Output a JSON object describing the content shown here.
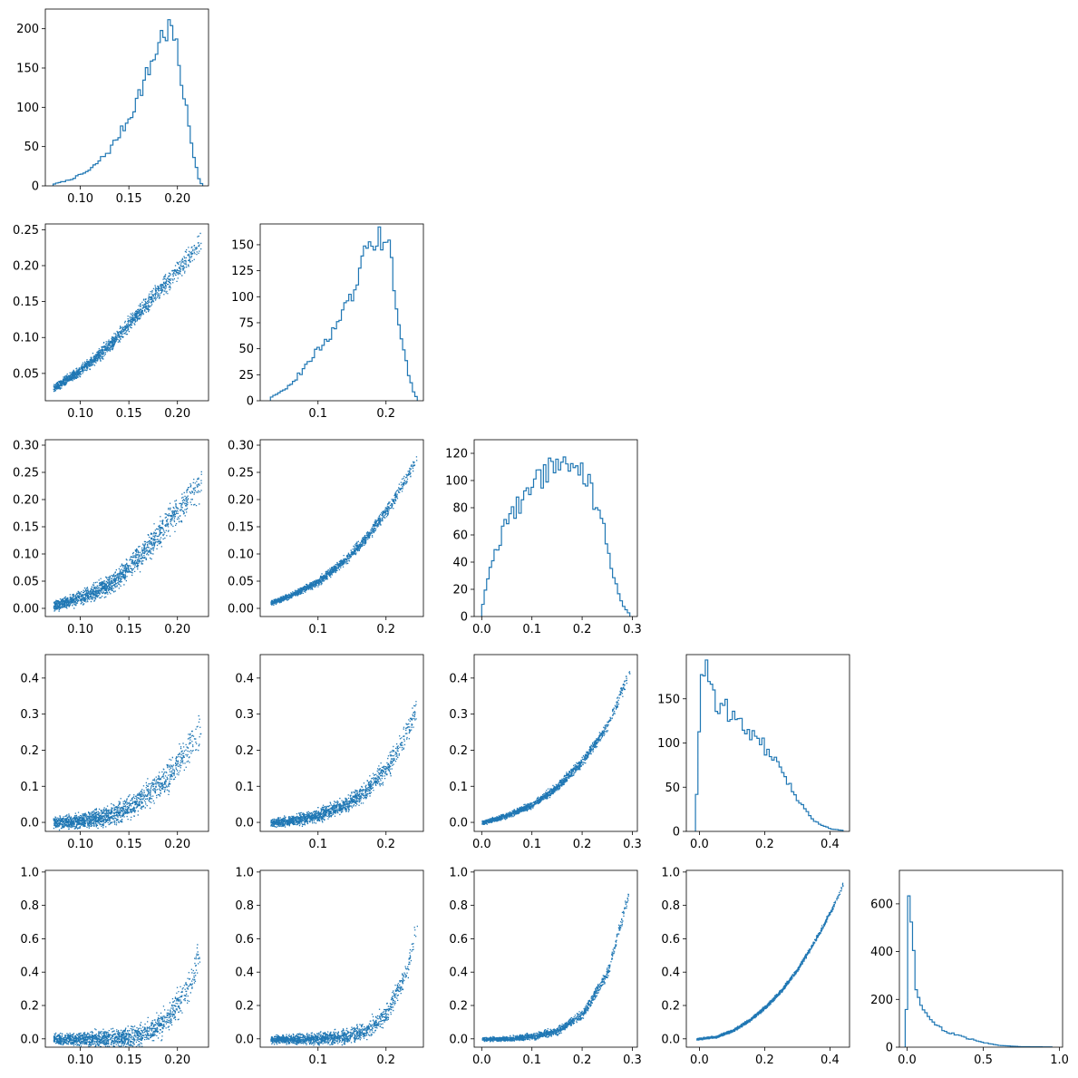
{
  "figure": {
    "rows": 5,
    "cols": 5,
    "color": "#1f77b4",
    "background": "#ffffff"
  },
  "chart_data": [
    {
      "type": "histogram",
      "row": 0,
      "col": 0,
      "xlim": [
        0.064,
        0.232
      ],
      "ylim": [
        0,
        225
      ],
      "xticks": [
        0.1,
        0.15,
        0.2
      ],
      "xticklabels": [
        "0.10",
        "0.15",
        "0.20"
      ],
      "yticks": [
        0,
        50,
        100,
        150,
        200
      ],
      "yticklabels": [
        "0",
        "50",
        "100",
        "150",
        "200"
      ],
      "profile_x": [
        0.072,
        0.09,
        0.11,
        0.13,
        0.15,
        0.17,
        0.185,
        0.195,
        0.205,
        0.215,
        0.222,
        0.226
      ],
      "profile_y": [
        2,
        8,
        20,
        45,
        85,
        145,
        195,
        200,
        130,
        50,
        10,
        0
      ],
      "bins": 60
    },
    {
      "type": "scatter",
      "row": 1,
      "col": 0,
      "xlim": [
        0.064,
        0.232
      ],
      "ylim": [
        0.012,
        0.258
      ],
      "xticks": [
        0.1,
        0.15,
        0.2
      ],
      "xticklabels": [
        "0.10",
        "0.15",
        "0.20"
      ],
      "yticks": [
        0.05,
        0.1,
        0.15,
        0.2,
        0.25
      ],
      "yticklabels": [
        "0.05",
        "0.10",
        "0.15",
        "0.20",
        "0.25"
      ],
      "curve_x": [
        0.072,
        0.1,
        0.13,
        0.15,
        0.17,
        0.19,
        0.21,
        0.225
      ],
      "curve_y": [
        0.03,
        0.055,
        0.09,
        0.12,
        0.15,
        0.18,
        0.21,
        0.235
      ],
      "spread": 0.012
    },
    {
      "type": "histogram",
      "row": 1,
      "col": 1,
      "xlim": [
        0.015,
        0.255
      ],
      "ylim": [
        0,
        170
      ],
      "xticks": [
        0.1,
        0.2
      ],
      "xticklabels": [
        "0.1",
        "0.2"
      ],
      "yticks": [
        0,
        25,
        50,
        75,
        100,
        125,
        150
      ],
      "yticklabels": [
        "0",
        "25",
        "50",
        "75",
        "100",
        "125",
        "150"
      ],
      "profile_x": [
        0.03,
        0.06,
        0.09,
        0.12,
        0.15,
        0.17,
        0.19,
        0.205,
        0.215,
        0.228,
        0.24,
        0.246
      ],
      "profile_y": [
        3,
        15,
        40,
        65,
        100,
        140,
        160,
        145,
        90,
        40,
        10,
        2
      ],
      "bins": 60
    },
    {
      "type": "scatter",
      "row": 2,
      "col": 0,
      "xlim": [
        0.064,
        0.232
      ],
      "ylim": [
        -0.015,
        0.31
      ],
      "xticks": [
        0.1,
        0.15,
        0.2
      ],
      "xticklabels": [
        "0.10",
        "0.15",
        "0.20"
      ],
      "yticks": [
        0.0,
        0.05,
        0.1,
        0.15,
        0.2,
        0.25,
        0.3
      ],
      "yticklabels": [
        "0.00",
        "0.05",
        "0.10",
        "0.15",
        "0.20",
        "0.25",
        "0.30"
      ],
      "curve_x": [
        0.072,
        0.1,
        0.13,
        0.15,
        0.17,
        0.19,
        0.21,
        0.225
      ],
      "curve_y": [
        0.005,
        0.02,
        0.045,
        0.075,
        0.115,
        0.16,
        0.2,
        0.235
      ],
      "spread": 0.022
    },
    {
      "type": "scatter",
      "row": 2,
      "col": 1,
      "xlim": [
        0.015,
        0.255
      ],
      "ylim": [
        -0.015,
        0.31
      ],
      "xticks": [
        0.1,
        0.2
      ],
      "xticklabels": [
        "0.1",
        "0.2"
      ],
      "yticks": [
        0.0,
        0.05,
        0.1,
        0.15,
        0.2,
        0.25,
        0.3
      ],
      "yticklabels": [
        "0.00",
        "0.05",
        "0.10",
        "0.15",
        "0.20",
        "0.25",
        "0.30"
      ],
      "curve_x": [
        0.03,
        0.06,
        0.1,
        0.14,
        0.17,
        0.2,
        0.23,
        0.246
      ],
      "curve_y": [
        0.01,
        0.025,
        0.05,
        0.09,
        0.13,
        0.18,
        0.24,
        0.28
      ],
      "spread": 0.01
    },
    {
      "type": "histogram",
      "row": 2,
      "col": 2,
      "xlim": [
        -0.015,
        0.31
      ],
      "ylim": [
        0,
        130
      ],
      "xticks": [
        0.0,
        0.1,
        0.2,
        0.3
      ],
      "xticklabels": [
        "0.0",
        "0.1",
        "0.2",
        "0.3"
      ],
      "yticks": [
        0,
        20,
        40,
        60,
        80,
        100,
        120
      ],
      "yticklabels": [
        "0",
        "20",
        "40",
        "60",
        "80",
        "100",
        "120"
      ],
      "profile_x": [
        0.0,
        0.02,
        0.05,
        0.1,
        0.15,
        0.18,
        0.21,
        0.24,
        0.26,
        0.28,
        0.295
      ],
      "profile_y": [
        5,
        40,
        70,
        95,
        115,
        115,
        100,
        70,
        35,
        8,
        2
      ],
      "bins": 60
    },
    {
      "type": "scatter",
      "row": 3,
      "col": 0,
      "xlim": [
        0.064,
        0.232
      ],
      "ylim": [
        -0.025,
        0.465
      ],
      "xticks": [
        0.1,
        0.15,
        0.2
      ],
      "xticklabels": [
        "0.10",
        "0.15",
        "0.20"
      ],
      "yticks": [
        0.0,
        0.1,
        0.2,
        0.3,
        0.4
      ],
      "yticklabels": [
        "0.0",
        "0.1",
        "0.2",
        "0.3",
        "0.4"
      ],
      "curve_x": [
        0.072,
        0.1,
        0.13,
        0.15,
        0.17,
        0.19,
        0.21,
        0.225
      ],
      "curve_y": [
        0.0,
        0.005,
        0.02,
        0.04,
        0.08,
        0.13,
        0.2,
        0.27
      ],
      "spread": 0.035
    },
    {
      "type": "scatter",
      "row": 3,
      "col": 1,
      "xlim": [
        0.015,
        0.255
      ],
      "ylim": [
        -0.025,
        0.465
      ],
      "xticks": [
        0.1,
        0.2
      ],
      "xticklabels": [
        "0.1",
        "0.2"
      ],
      "yticks": [
        0.0,
        0.1,
        0.2,
        0.3,
        0.4
      ],
      "yticklabels": [
        "0.0",
        "0.1",
        "0.2",
        "0.3",
        "0.4"
      ],
      "curve_x": [
        0.03,
        0.06,
        0.1,
        0.14,
        0.17,
        0.2,
        0.23,
        0.246
      ],
      "curve_y": [
        0.0,
        0.005,
        0.02,
        0.05,
        0.09,
        0.15,
        0.25,
        0.33
      ],
      "spread": 0.025
    },
    {
      "type": "scatter",
      "row": 3,
      "col": 2,
      "xlim": [
        -0.015,
        0.31
      ],
      "ylim": [
        -0.025,
        0.465
      ],
      "xticks": [
        0.0,
        0.1,
        0.2,
        0.3
      ],
      "xticklabels": [
        "0.0",
        "0.1",
        "0.2",
        "0.3"
      ],
      "yticks": [
        0.0,
        0.1,
        0.2,
        0.3,
        0.4
      ],
      "yticklabels": [
        "0.0",
        "0.1",
        "0.2",
        "0.3",
        "0.4"
      ],
      "curve_x": [
        0.0,
        0.05,
        0.1,
        0.15,
        0.2,
        0.25,
        0.295
      ],
      "curve_y": [
        0.0,
        0.02,
        0.05,
        0.1,
        0.17,
        0.27,
        0.42
      ],
      "spread": 0.012
    },
    {
      "type": "histogram",
      "row": 3,
      "col": 3,
      "xlim": [
        -0.04,
        0.46
      ],
      "ylim": [
        0,
        200
      ],
      "xticks": [
        0.0,
        0.2,
        0.4
      ],
      "xticklabels": [
        "0.0",
        "0.2",
        "0.4"
      ],
      "yticks": [
        0,
        50,
        100,
        150
      ],
      "yticklabels": [
        "0",
        "50",
        "100",
        "150"
      ],
      "profile_x": [
        -0.012,
        -0.005,
        0.005,
        0.015,
        0.05,
        0.1,
        0.15,
        0.2,
        0.25,
        0.3,
        0.35,
        0.4,
        0.44
      ],
      "profile_y": [
        0,
        80,
        170,
        185,
        150,
        130,
        115,
        95,
        70,
        35,
        12,
        3,
        1
      ],
      "bins": 60
    },
    {
      "type": "scatter",
      "row": 4,
      "col": 0,
      "xlim": [
        0.064,
        0.232
      ],
      "ylim": [
        -0.05,
        1.01
      ],
      "xticks": [
        0.1,
        0.15,
        0.2
      ],
      "xticklabels": [
        "0.10",
        "0.15",
        "0.20"
      ],
      "yticks": [
        0.0,
        0.2,
        0.4,
        0.6,
        0.8,
        1.0
      ],
      "yticklabels": [
        "0.0",
        "0.2",
        "0.4",
        "0.6",
        "0.8",
        "1.0"
      ],
      "curve_x": [
        0.072,
        0.1,
        0.13,
        0.15,
        0.17,
        0.19,
        0.21,
        0.225
      ],
      "curve_y": [
        0.0,
        0.0,
        0.005,
        0.01,
        0.04,
        0.12,
        0.3,
        0.55
      ],
      "spread": 0.07
    },
    {
      "type": "scatter",
      "row": 4,
      "col": 1,
      "xlim": [
        0.015,
        0.255
      ],
      "ylim": [
        -0.05,
        1.01
      ],
      "xticks": [
        0.1,
        0.2
      ],
      "xticklabels": [
        "0.1",
        "0.2"
      ],
      "yticks": [
        0.0,
        0.2,
        0.4,
        0.6,
        0.8,
        1.0
      ],
      "yticklabels": [
        "0.0",
        "0.2",
        "0.4",
        "0.6",
        "0.8",
        "1.0"
      ],
      "curve_x": [
        0.03,
        0.06,
        0.1,
        0.14,
        0.17,
        0.2,
        0.23,
        0.246
      ],
      "curve_y": [
        0.0,
        0.0,
        0.003,
        0.015,
        0.05,
        0.15,
        0.4,
        0.7
      ],
      "spread": 0.05
    },
    {
      "type": "scatter",
      "row": 4,
      "col": 2,
      "xlim": [
        -0.015,
        0.31
      ],
      "ylim": [
        -0.05,
        1.01
      ],
      "xticks": [
        0.0,
        0.1,
        0.2,
        0.3
      ],
      "xticklabels": [
        "0.0",
        "0.1",
        "0.2",
        "0.3"
      ],
      "yticks": [
        0.0,
        0.2,
        0.4,
        0.6,
        0.8,
        1.0
      ],
      "yticklabels": [
        "0.0",
        "0.2",
        "0.4",
        "0.6",
        "0.8",
        "1.0"
      ],
      "curve_x": [
        0.0,
        0.05,
        0.1,
        0.15,
        0.2,
        0.25,
        0.295
      ],
      "curve_y": [
        0.0,
        0.003,
        0.015,
        0.05,
        0.15,
        0.4,
        0.9
      ],
      "spread": 0.025
    },
    {
      "type": "scatter",
      "row": 4,
      "col": 3,
      "xlim": [
        -0.04,
        0.46
      ],
      "ylim": [
        -0.05,
        1.01
      ],
      "xticks": [
        0.0,
        0.2,
        0.4
      ],
      "xticklabels": [
        "0.0",
        "0.2",
        "0.4"
      ],
      "yticks": [
        0.0,
        0.2,
        0.4,
        0.6,
        0.8,
        1.0
      ],
      "yticklabels": [
        "0.0",
        "0.2",
        "0.4",
        "0.6",
        "0.8",
        "1.0"
      ],
      "curve_x": [
        -0.01,
        0.05,
        0.1,
        0.15,
        0.2,
        0.25,
        0.3,
        0.35,
        0.4,
        0.44
      ],
      "curve_y": [
        0.0,
        0.015,
        0.05,
        0.11,
        0.19,
        0.29,
        0.42,
        0.58,
        0.76,
        0.93
      ],
      "spread": 0.012
    },
    {
      "type": "histogram",
      "row": 4,
      "col": 4,
      "xlim": [
        -0.05,
        1.02
      ],
      "ylim": [
        0,
        740
      ],
      "xticks": [
        0.0,
        0.5,
        1.0
      ],
      "xticklabels": [
        "0.0",
        "0.5",
        "1.0"
      ],
      "yticks": [
        0,
        200,
        400,
        600
      ],
      "yticklabels": [
        "0",
        "200",
        "400",
        "600"
      ],
      "profile_x": [
        -0.012,
        -0.002,
        0.01,
        0.03,
        0.06,
        0.1,
        0.15,
        0.25,
        0.35,
        0.5,
        0.6,
        0.75,
        0.95
      ],
      "profile_y": [
        0,
        200,
        680,
        480,
        250,
        160,
        110,
        70,
        45,
        20,
        8,
        2,
        1
      ],
      "bins": 60
    }
  ]
}
